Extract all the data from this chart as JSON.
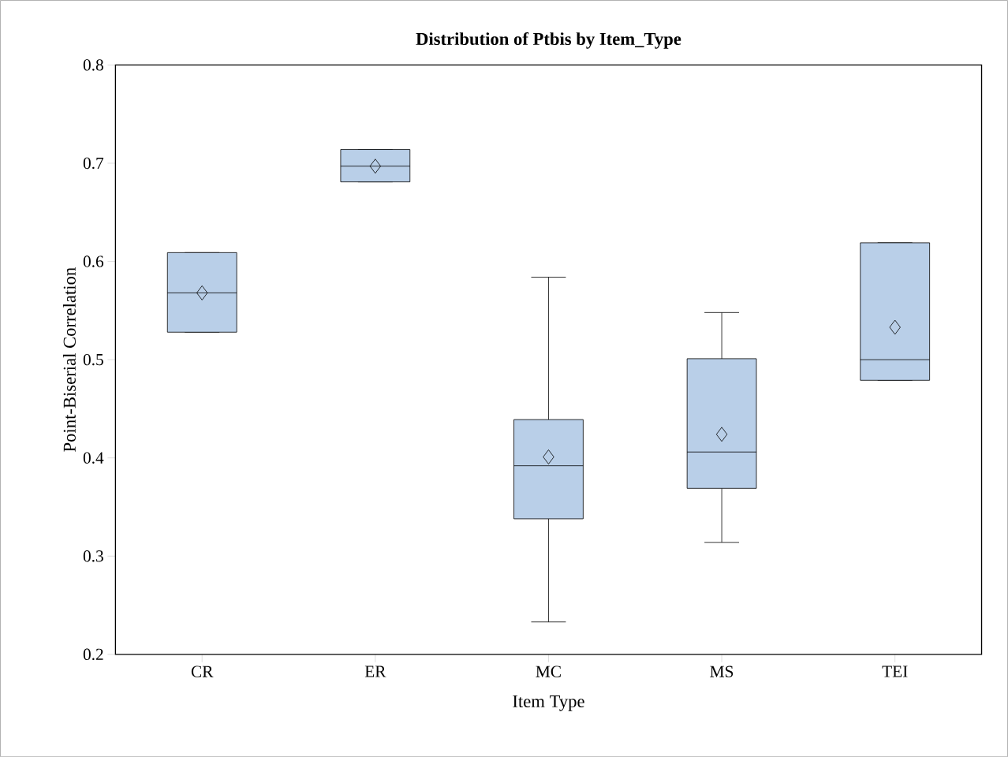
{
  "chart_data": {
    "type": "box",
    "title": "Distribution of Ptbis by Item_Type",
    "xlabel": "Item Type",
    "ylabel": "Point-Biserial Correlation",
    "categories": [
      "CR",
      "ER",
      "MC",
      "MS",
      "TEI"
    ],
    "color": "#b9cfe8",
    "boxes": [
      {
        "low": 0.528,
        "q1": 0.528,
        "median": 0.568,
        "q3": 0.609,
        "high": 0.609,
        "mean": 0.568
      },
      {
        "low": 0.681,
        "q1": 0.681,
        "median": 0.697,
        "q3": 0.714,
        "high": 0.714,
        "mean": 0.697
      },
      {
        "low": 0.233,
        "q1": 0.338,
        "median": 0.392,
        "q3": 0.439,
        "high": 0.584,
        "mean": 0.401
      },
      {
        "low": 0.314,
        "q1": 0.369,
        "median": 0.406,
        "q3": 0.501,
        "high": 0.548,
        "mean": 0.424
      },
      {
        "low": 0.479,
        "q1": 0.479,
        "median": 0.5,
        "q3": 0.619,
        "high": 0.619,
        "mean": 0.533
      }
    ],
    "ylim": [
      0.2,
      0.8
    ],
    "yticks": [
      0.2,
      0.3,
      0.4,
      0.5,
      0.6,
      0.7,
      0.8
    ],
    "grid": false,
    "marker": "diamond"
  }
}
